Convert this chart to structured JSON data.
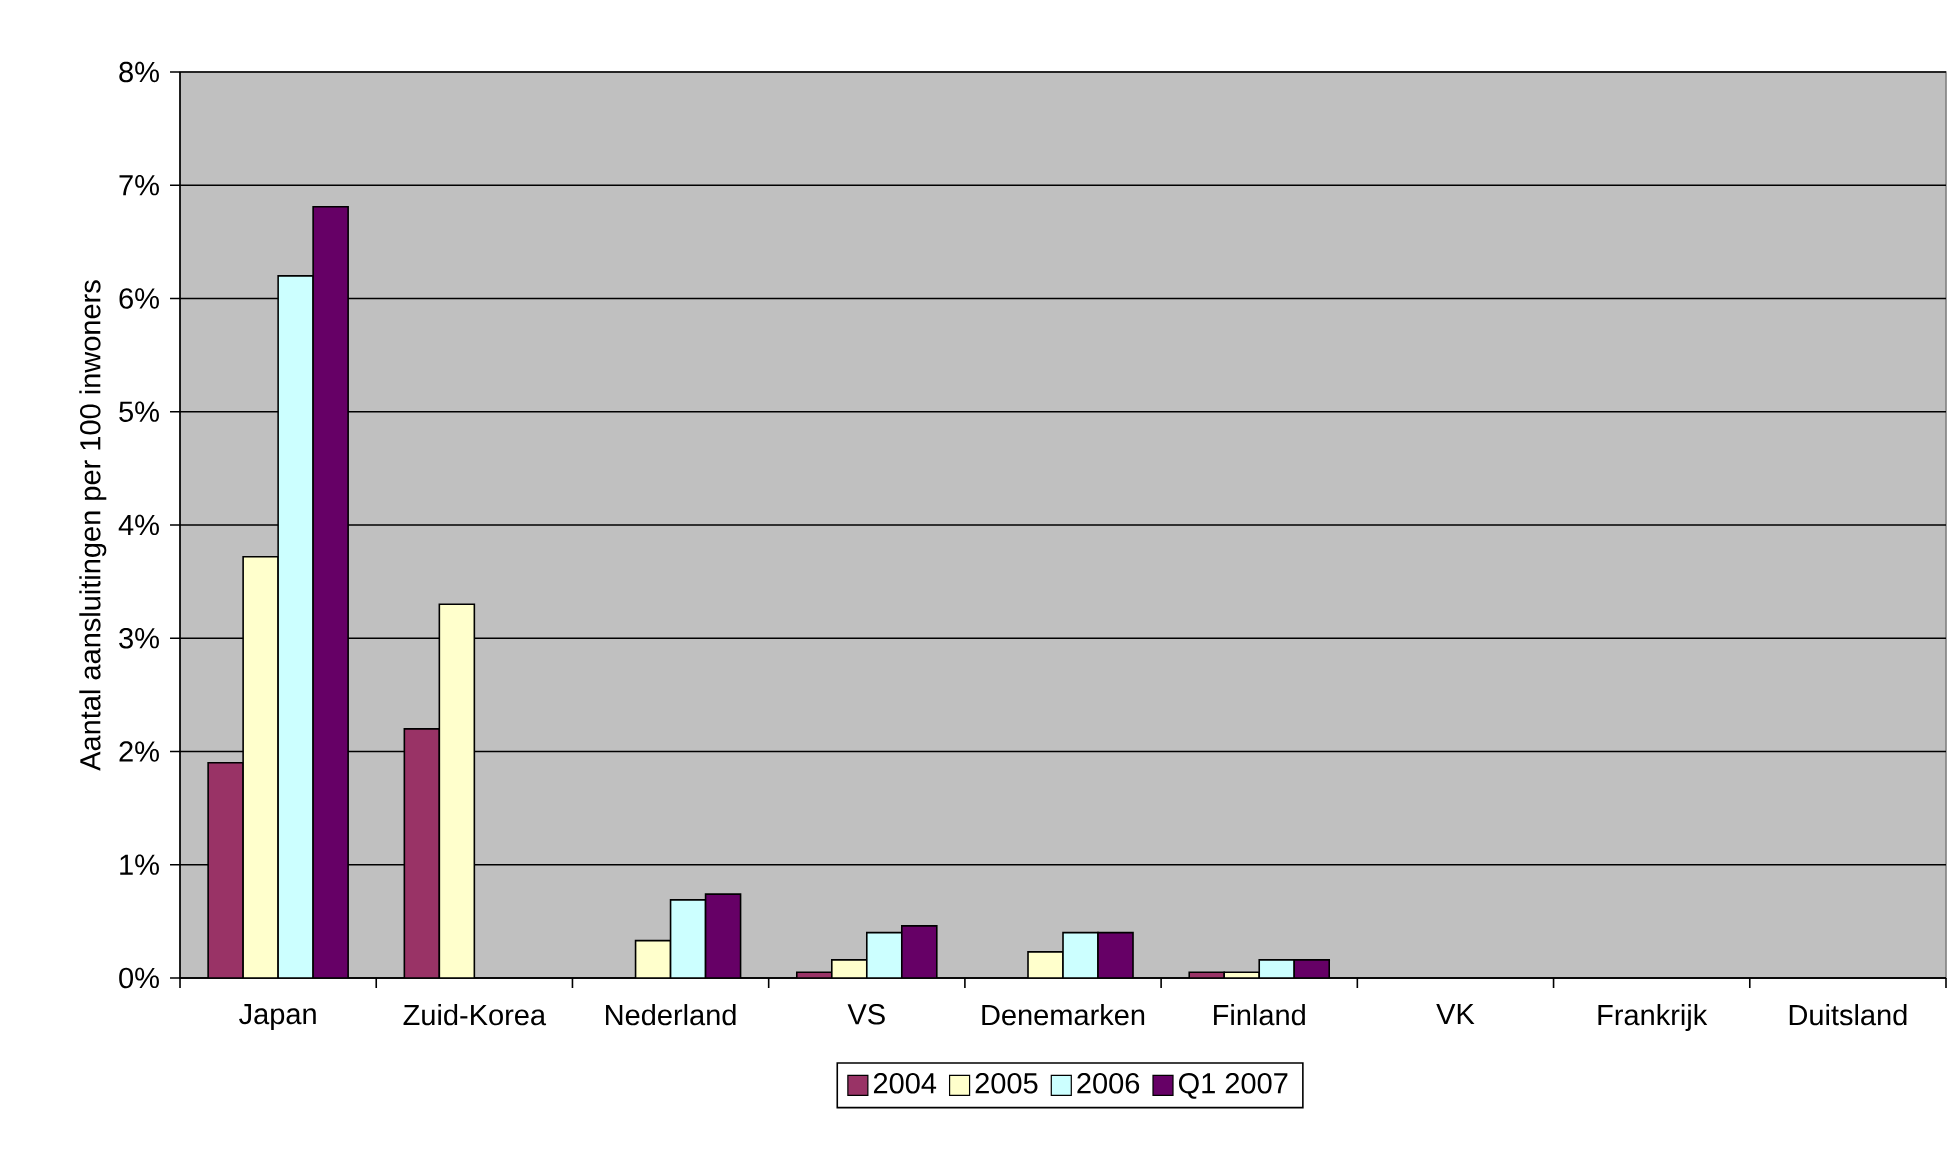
{
  "chart_data": {
    "type": "bar",
    "ylabel": "Aantal aansluitingen per 100 inwoners",
    "categories": [
      "Japan",
      "Zuid-Korea",
      "Nederland",
      "VS",
      "Denemarken",
      "Finland",
      "VK",
      "Frankrijk",
      "Duitsland"
    ],
    "series": [
      {
        "name": "2004",
        "color": "#993366",
        "values": [
          1.9,
          2.2,
          null,
          0.05,
          null,
          0.05,
          null,
          null,
          null
        ]
      },
      {
        "name": "2005",
        "color": "#ffffcc",
        "values": [
          3.72,
          3.3,
          0.33,
          0.16,
          0.23,
          0.05,
          null,
          null,
          null
        ]
      },
      {
        "name": "2006",
        "color": "#ccffff",
        "values": [
          6.2,
          null,
          0.69,
          0.4,
          0.4,
          0.16,
          null,
          null,
          null
        ]
      },
      {
        "name": "Q1 2007",
        "color": "#660066",
        "values": [
          6.81,
          null,
          0.74,
          0.46,
          0.4,
          0.16,
          null,
          null,
          null
        ]
      }
    ],
    "ylim": [
      0,
      8
    ],
    "yticks": [
      {
        "value": 0,
        "label": "0%"
      },
      {
        "value": 1,
        "label": "1%"
      },
      {
        "value": 2,
        "label": "2%"
      },
      {
        "value": 3,
        "label": "3%"
      },
      {
        "value": 4,
        "label": "4%"
      },
      {
        "value": 5,
        "label": "5%"
      },
      {
        "value": 6,
        "label": "6%"
      },
      {
        "value": 7,
        "label": "7%"
      },
      {
        "value": 8,
        "label": "8%"
      }
    ],
    "grid": "y",
    "legend": "bottom"
  }
}
